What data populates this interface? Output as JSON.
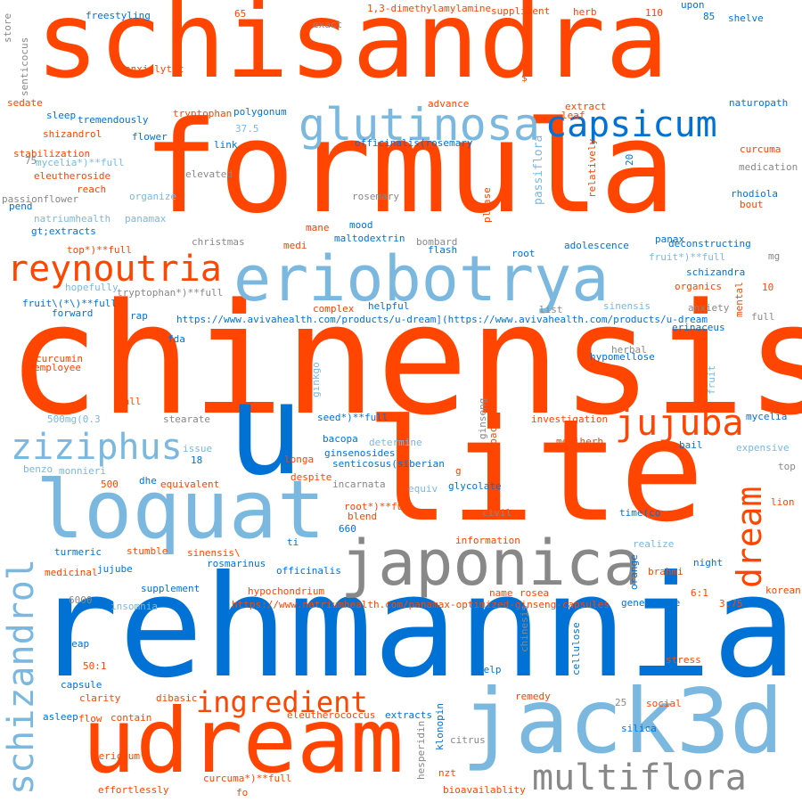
{
  "palette": {
    "orange": "#ff4500",
    "blue": "#0072d6",
    "light_blue": "#7ab8e0",
    "gray": "#888888"
  },
  "words": [
    "schisandra",
    "formula",
    "chinensis",
    "lite",
    "u",
    "rehmannia",
    "jack3d",
    "udream",
    "loquat",
    "japonica",
    "eriobotrya",
    "reynoutria",
    "glutinosa",
    "capsicum",
    "jujuba",
    "ziziphus",
    "dream",
    "schizandrol",
    "multiflora",
    "ingredient",
    "freestyling",
    "65",
    "exact",
    "1,3-dimethylamylamine",
    "suppliment",
    "herb",
    "110",
    "upon",
    "85",
    "shelve",
    "store",
    "senticocus",
    "anxiolytic",
    "$",
    "naturopath",
    "sedate",
    "advance",
    "extract",
    "leaf",
    "sleep",
    "37.5",
    "tremendously",
    "polygonum",
    "tryptophan",
    "shizandrol",
    "flower",
    "link",
    "officinalis(rosemary",
    "curcuma",
    "30",
    "stabilization",
    "mycelia*)**full",
    "20",
    "relatively",
    "passiflora",
    "medication",
    "eleutheroside",
    "elevated",
    "75",
    "passionflower",
    "reach",
    "organize",
    "rosemary",
    "please",
    "rhodiola",
    "bout",
    "pend",
    "natriumhealth",
    "panamax",
    "mood",
    "mane",
    "gt;extracts",
    "maltodextrin",
    "christmas",
    "flash",
    "bombard",
    "panax",
    "top*)**full",
    "medi",
    "adolescence",
    "deconstructing",
    "root",
    "mg",
    "fruit*)**full",
    "schizandra",
    "organics",
    "hopefully",
    "10",
    "tryptophan*)**full",
    "fruit\\(*\\)**full",
    "complex",
    "helpful",
    "list",
    "sinensis",
    "mental",
    "forward",
    "rap",
    "anxiety",
    "full",
    "https://www.avivahealth.com/products/u-dream](https://www.avivahealth.com/products/u-dream",
    "erinaceus",
    "fda",
    "curcumin",
    "herbal",
    "employee",
    "hypomellose",
    "ginkgo",
    "call",
    "fruit",
    "ginseng",
    "500mg(0.3",
    "stearate",
    "seed*)**full",
    "investigation",
    "mycelia",
    "bacopa",
    "dopac",
    "bail",
    "issue",
    "determine",
    "expensive",
    "benzo",
    "18",
    "ginsenosides",
    "mediherb",
    "longa",
    "senticosus(siberian",
    "top",
    "monnieri",
    "g",
    "500",
    "equivalent",
    "dhe",
    "despite",
    "incarnata",
    "glycolate",
    "lion",
    "equiv",
    "time(co",
    "root*)**full",
    "civil",
    "blend",
    "660",
    "information",
    "sinensis\\",
    "realize",
    "turmeric",
    "stumble",
    "ti",
    "brahmi",
    "officinalis",
    "night",
    "jujube",
    "medicinal",
    "rosmarinus",
    "orange",
    "supplement",
    "6000",
    "hypochondrium",
    "name",
    "rosea",
    "6:1",
    "korean",
    "insomnia",
    "https://www.natriumhealth.com/panamax-optimized-ginseng-capsules",
    "generalize",
    "3.75",
    "cheap",
    "cellulose",
    "chinesis",
    "50:1",
    "help",
    "stress",
    "capsule",
    "clarity",
    "dibasic",
    "remedy",
    "25",
    "social",
    "asleep",
    "flow",
    "contain",
    "eleutherococcus",
    "extracts",
    "klonopin",
    "silica",
    "citrus",
    "hesperidin",
    "hericium",
    "nzt",
    "curcuma*)**full",
    "effortlessly",
    "fo",
    "bioavailablity"
  ]
}
